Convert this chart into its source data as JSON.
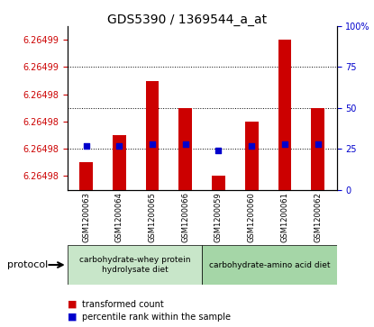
{
  "title": "GDS5390 / 1369544_a_at",
  "samples": [
    "GSM1200063",
    "GSM1200064",
    "GSM1200065",
    "GSM1200066",
    "GSM1200059",
    "GSM1200060",
    "GSM1200061",
    "GSM1200062"
  ],
  "transformed_counts": [
    6.264981,
    6.264983,
    6.264987,
    6.264985,
    6.26498,
    6.264984,
    6.26499,
    6.264985
  ],
  "percentile_ranks": [
    27,
    27,
    28,
    28,
    24,
    27,
    28,
    28
  ],
  "ylim_left": [
    6.264979,
    6.264991
  ],
  "ylim_right": [
    0,
    100
  ],
  "yticks_left": [
    6.26498,
    6.26498,
    6.26498,
    6.26498,
    6.26499,
    6.26499
  ],
  "ytick_labels_left": [
    "6.26498",
    "6.26498",
    "6.26498",
    "6.26498",
    "6.26499",
    "6.26499"
  ],
  "yticks_right": [
    0,
    25,
    50,
    75,
    100
  ],
  "ytick_labels_right": [
    "0",
    "25",
    "50",
    "75",
    "100%"
  ],
  "group1": {
    "label": "carbohydrate-whey protein\nhydrolysate diet",
    "indices": [
      0,
      1,
      2,
      3
    ],
    "color": "#c8e6c9"
  },
  "group2": {
    "label": "carbohydrate-amino acid diet",
    "indices": [
      4,
      5,
      6,
      7
    ],
    "color": "#a5d6a7"
  },
  "protocol_label": "protocol",
  "bar_color": "#cc0000",
  "dot_color": "#0000cc",
  "grid_color": "#000000",
  "bg_color": "#f0f0f0",
  "plot_bg": "#ffffff",
  "left_tick_color": "#cc0000",
  "right_tick_color": "#0000cc"
}
